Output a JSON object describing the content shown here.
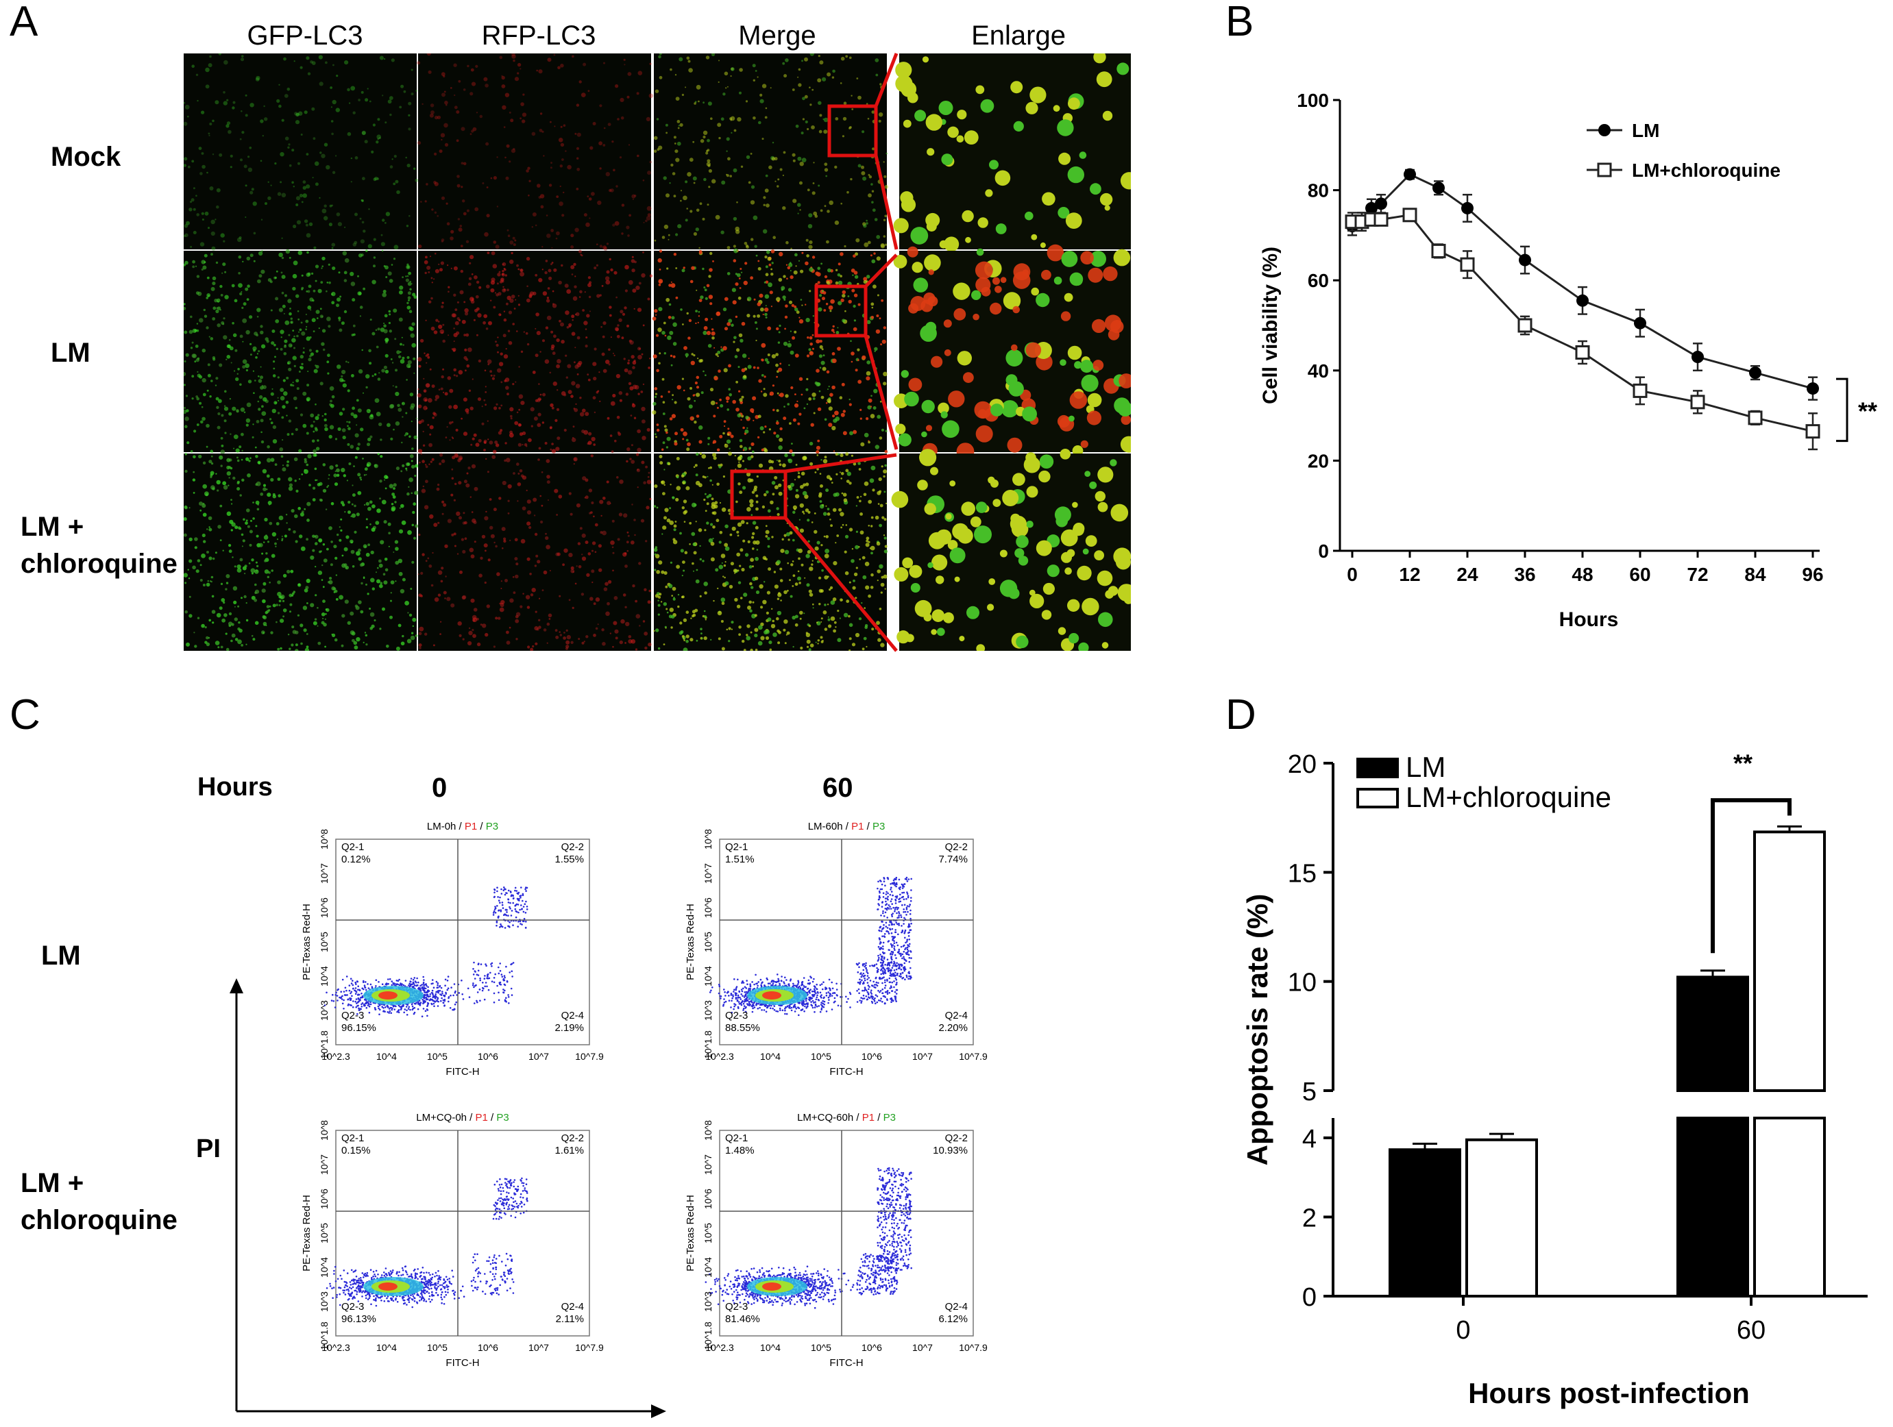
{
  "panelA": {
    "letter": "A",
    "columns": [
      "GFP-LC3",
      "RFP-LC3",
      "Merge",
      "Enlarge"
    ],
    "rows": [
      {
        "label_lines": [
          "Mock"
        ]
      },
      {
        "label_lines": [
          "LM"
        ]
      },
      {
        "label_lines": [
          "LM +",
          "chloroquine"
        ]
      }
    ]
  },
  "panelB": {
    "letter": "B",
    "chart_data": {
      "type": "line",
      "xlabel": "Hours",
      "ylabel": "Cell viability (%)",
      "xlim": [
        0,
        96
      ],
      "ylim": [
        0,
        100
      ],
      "xticks": [
        0,
        12,
        24,
        36,
        48,
        60,
        72,
        84,
        96
      ],
      "yticks": [
        0,
        20,
        40,
        60,
        80,
        100
      ],
      "legend_position": "top-right",
      "significance": "**",
      "series": [
        {
          "name": "LM",
          "marker": "filled-circle",
          "x": [
            0,
            2,
            4,
            6,
            12,
            18,
            24,
            36,
            48,
            60,
            72,
            84,
            96
          ],
          "y": [
            72,
            73,
            76,
            77,
            83.5,
            80.5,
            76,
            64.5,
            55.5,
            50.5,
            43,
            39.5,
            36
          ],
          "err": [
            2,
            2,
            2,
            2,
            1,
            1.5,
            3,
            3,
            3,
            3,
            3,
            1.5,
            2.5
          ]
        },
        {
          "name": "LM+chloroquine",
          "marker": "open-square",
          "x": [
            0,
            2,
            4,
            6,
            12,
            18,
            24,
            36,
            48,
            60,
            72,
            84,
            96
          ],
          "y": [
            73,
            73,
            73.5,
            73.5,
            74.5,
            66.5,
            63.5,
            50,
            44,
            35.5,
            33,
            29.5,
            26.5
          ],
          "err": [
            2,
            2,
            1,
            1,
            1,
            1.5,
            3,
            2,
            2.5,
            3,
            2.5,
            1.5,
            4
          ]
        }
      ]
    }
  },
  "panelC": {
    "letter": "C",
    "hours_label": "Hours",
    "time_headers": [
      "0",
      "60"
    ],
    "row_labels": [
      [
        "LM"
      ],
      [
        "LM +",
        "chloroquine"
      ]
    ],
    "y_axis_label": "PI",
    "plots": [
      {
        "title_prefix": "LM-0h",
        "p1": "P1",
        "p3": "P3",
        "sep": " / ",
        "q1": "Q2-1",
        "q1v": "0.12%",
        "q2": "Q2-2",
        "q2v": "1.55%",
        "q3": "Q2-3",
        "q3v": "96.15%",
        "q4": "Q2-4",
        "q4v": "2.19%"
      },
      {
        "title_prefix": "LM-60h",
        "p1": "P1",
        "p3": "P3",
        "sep": " / ",
        "q1": "Q2-1",
        "q1v": "1.51%",
        "q2": "Q2-2",
        "q2v": "7.74%",
        "q3": "Q2-3",
        "q3v": "88.55%",
        "q4": "Q2-4",
        "q4v": "2.20%"
      },
      {
        "title_prefix": "LM+CQ-0h",
        "p1": "P1",
        "p3": "P3",
        "sep": " / ",
        "q1": "Q2-1",
        "q1v": "0.15%",
        "q2": "Q2-2",
        "q2v": "1.61%",
        "q3": "Q2-3",
        "q3v": "96.13%",
        "q4": "Q2-4",
        "q4v": "2.11%"
      },
      {
        "title_prefix": "LM+CQ-60h",
        "p1": "P1",
        "p3": "P3",
        "sep": " / ",
        "q1": "Q2-1",
        "q1v": "1.48%",
        "q2": "Q2-2",
        "q2v": "10.93%",
        "q3": "Q2-3",
        "q3v": "81.46%",
        "q4": "Q2-4",
        "q4v": "6.12%"
      }
    ],
    "flow_axes": {
      "xlabel": "FITC-H",
      "ylabel": "PE-Texas Red-H",
      "xticks": [
        "10^2.3",
        "10^4",
        "10^5",
        "10^6",
        "10^7",
        "10^7.9"
      ],
      "yticks": [
        "10^1.8",
        "10^3",
        "10^4",
        "10^5",
        "10^6",
        "10^7",
        "10^8"
      ]
    }
  },
  "panelD": {
    "letter": "D",
    "chart_data": {
      "type": "bar",
      "categories": [
        "0",
        "60"
      ],
      "xlabel": "Hours post-infection",
      "ylabel": "Appoptosis rate (%)",
      "yticks_lower": [
        0,
        2,
        4
      ],
      "yticks_upper": [
        5,
        10,
        15,
        20
      ],
      "axis_break": true,
      "legend_position": "top-left",
      "significance": "**",
      "series": [
        {
          "name": "LM",
          "fill": "#000000",
          "values": [
            3.7,
            10.2
          ],
          "err": [
            0.15,
            0.3
          ]
        },
        {
          "name": "LM+chloroquine",
          "fill": "#ffffff",
          "values": [
            3.95,
            16.85
          ],
          "err": [
            0.15,
            0.25
          ]
        }
      ]
    }
  }
}
